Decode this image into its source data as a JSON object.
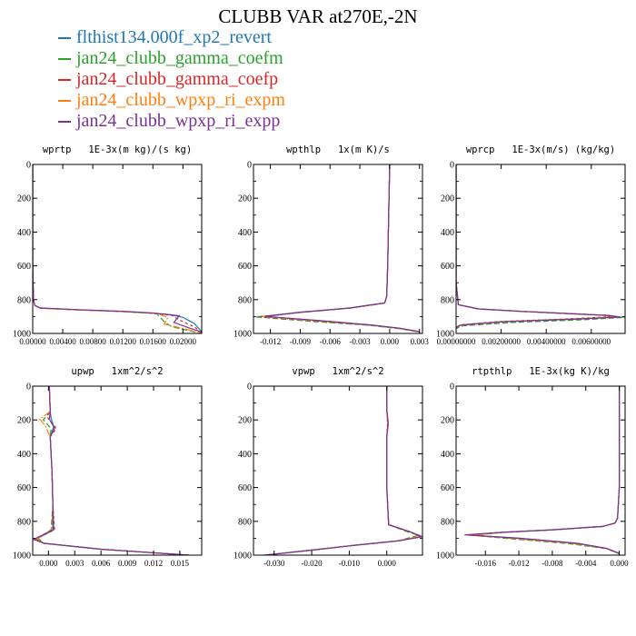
{
  "title": "CLUBB VAR at270E,-2N",
  "legend": [
    {
      "label": "flthist134.000f_xp2_revert",
      "color": "#1f77b4"
    },
    {
      "label": "jan24_clubb_gamma_coefm",
      "color": "#2ca02c"
    },
    {
      "label": "jan24_clubb_gamma_coefp",
      "color": "#d62728"
    },
    {
      "label": "jan24_clubb_wpxp_ri_expm",
      "color": "#ff7f0e"
    },
    {
      "label": "jan24_clubb_wpxp_ri_expp",
      "color": "#7b3294"
    }
  ],
  "chart_data": [
    {
      "type": "line",
      "title": "wprtp   1E-3x(m kg)/(s kg)",
      "xlim": [
        0.0,
        0.0225
      ],
      "ylim": [
        1000,
        0
      ],
      "xticks": [
        0.0,
        0.004,
        0.008,
        0.012,
        0.016,
        0.02
      ],
      "xtick_labels": [
        "0.00000",
        "0.00400",
        "0.00800",
        "0.01200",
        "0.01600",
        "0.02000"
      ],
      "yticks": [
        0,
        200,
        400,
        600,
        800,
        1000
      ],
      "series": [
        {
          "x": [
            0,
            0,
            0.0001,
            0.0003,
            0.001,
            0.006,
            0.012,
            0.016,
            0.0185,
            0.02,
            0.0215,
            0.0225
          ],
          "y": [
            0,
            600,
            800,
            835,
            850,
            860,
            870,
            880,
            890,
            905,
            940,
            990
          ]
        },
        {
          "x": [
            0,
            0,
            0.0001,
            0.0003,
            0.001,
            0.006,
            0.012,
            0.0165,
            0.0175,
            0.0185,
            0.0205,
            0.0225
          ],
          "y": [
            0,
            600,
            800,
            836,
            851,
            861,
            871,
            882,
            930,
            960,
            980,
            1000
          ]
        },
        {
          "x": [
            0,
            0,
            0.0001,
            0.0003,
            0.001,
            0.006,
            0.012,
            0.016,
            0.0185,
            0.0195,
            0.0215,
            0.0225
          ],
          "y": [
            0,
            600,
            800,
            835,
            850,
            860,
            870,
            881,
            892,
            920,
            960,
            995
          ]
        },
        {
          "x": [
            0,
            0,
            0.0001,
            0.0003,
            0.001,
            0.006,
            0.012,
            0.0165,
            0.018,
            0.0175,
            0.0205,
            0.0225
          ],
          "y": [
            0,
            600,
            800,
            836,
            851,
            861,
            871,
            881,
            905,
            945,
            975,
            1000
          ]
        },
        {
          "x": [
            0,
            0,
            0.0001,
            0.0003,
            0.001,
            0.006,
            0.012,
            0.016,
            0.0195,
            0.0188,
            0.021,
            0.0225
          ],
          "y": [
            0,
            600,
            800,
            835,
            849,
            859,
            869,
            879,
            895,
            935,
            970,
            992
          ]
        }
      ]
    },
    {
      "type": "line",
      "title": "wpthlp   1x(m K)/s",
      "xlim": [
        -0.0137,
        0.0033
      ],
      "ylim": [
        1000,
        0
      ],
      "xticks": [
        -0.012,
        -0.009,
        -0.006,
        -0.003,
        0.0,
        0.003
      ],
      "xtick_labels": [
        "-0.012",
        "-0.009",
        "-0.006",
        "-0.003",
        "0.000",
        "0.003"
      ],
      "yticks": [
        0,
        200,
        400,
        600,
        800,
        1000
      ],
      "series": [
        {
          "x": [
            0,
            -0.0001,
            -0.0002,
            -0.0003,
            -0.0005,
            -0.004,
            -0.009,
            -0.0125,
            -0.007,
            -0.002,
            0.001,
            0.003
          ],
          "y": [
            0,
            300,
            600,
            780,
            820,
            850,
            875,
            900,
            925,
            950,
            970,
            990
          ]
        },
        {
          "x": [
            0,
            -0.0001,
            -0.0002,
            -0.0003,
            -0.0005,
            -0.004,
            -0.009,
            -0.0135,
            -0.008,
            -0.002,
            0.001,
            0.003
          ],
          "y": [
            0,
            300,
            600,
            780,
            821,
            851,
            876,
            902,
            928,
            952,
            972,
            992
          ]
        },
        {
          "x": [
            0,
            -0.0001,
            -0.0002,
            -0.0003,
            -0.0005,
            -0.004,
            -0.009,
            -0.013,
            -0.0075,
            -0.002,
            0.001,
            0.003
          ],
          "y": [
            0,
            300,
            600,
            780,
            820,
            850,
            875,
            901,
            926,
            951,
            971,
            991
          ]
        },
        {
          "x": [
            0,
            -0.0001,
            -0.0002,
            -0.0003,
            -0.0005,
            -0.004,
            -0.009,
            -0.0128,
            -0.0072,
            -0.002,
            0.001,
            0.003
          ],
          "y": [
            0,
            300,
            600,
            780,
            820,
            849,
            874,
            900,
            925,
            950,
            970,
            990
          ]
        },
        {
          "x": [
            0,
            -0.0001,
            -0.0002,
            -0.0003,
            -0.0005,
            -0.004,
            -0.009,
            -0.0126,
            -0.007,
            -0.002,
            0.001,
            0.003
          ],
          "y": [
            0,
            300,
            600,
            780,
            819,
            849,
            874,
            899,
            924,
            949,
            969,
            989
          ]
        }
      ]
    },
    {
      "type": "line",
      "title": "wprcp   1E-3x(m/s) (kg/kg)",
      "xlim": [
        0.0,
        0.0075
      ],
      "ylim": [
        1000,
        0
      ],
      "xticks": [
        0.0,
        0.002,
        0.004,
        0.006
      ],
      "xtick_labels": [
        "0.00000000",
        "0.00200000",
        "0.00400000",
        "0.00600000"
      ],
      "yticks": [
        0,
        200,
        400,
        600,
        800,
        1000
      ],
      "series": [
        {
          "x": [
            0,
            0,
            0.0001,
            0.001,
            0.003,
            0.005,
            0.0068,
            0.0072,
            0.005,
            0.002,
            0.0002,
            0
          ],
          "y": [
            0,
            700,
            830,
            855,
            870,
            882,
            893,
            902,
            915,
            930,
            950,
            965
          ]
        },
        {
          "x": [
            0,
            0,
            0.0001,
            0.001,
            0.003,
            0.005,
            0.0068,
            0.0075,
            0.0055,
            0.0025,
            0.0003,
            0
          ],
          "y": [
            0,
            700,
            830,
            856,
            871,
            883,
            895,
            905,
            920,
            935,
            955,
            970
          ]
        },
        {
          "x": [
            0,
            0,
            0.0001,
            0.001,
            0.003,
            0.005,
            0.0066,
            0.0069,
            0.005,
            0.002,
            0.0002,
            0
          ],
          "y": [
            0,
            700,
            830,
            855,
            870,
            882,
            893,
            901,
            914,
            929,
            949,
            964
          ]
        },
        {
          "x": [
            0,
            0,
            0.0001,
            0.001,
            0.003,
            0.005,
            0.0067,
            0.007,
            0.005,
            0.002,
            0.0002,
            0
          ],
          "y": [
            0,
            700,
            830,
            855,
            870,
            882,
            893,
            903,
            916,
            931,
            951,
            966
          ]
        },
        {
          "x": [
            0,
            0,
            0.0001,
            0.001,
            0.003,
            0.005,
            0.0068,
            0.0073,
            0.0052,
            0.0021,
            0.0002,
            0
          ],
          "y": [
            0,
            700,
            830,
            855,
            870,
            882,
            894,
            903,
            916,
            931,
            951,
            966
          ]
        }
      ]
    },
    {
      "type": "line",
      "title": "upwp   1xm^2/s^2",
      "xlim": [
        -0.0018,
        0.0175
      ],
      "ylim": [
        1000,
        0
      ],
      "xticks": [
        0.0,
        0.003,
        0.006,
        0.009,
        0.012,
        0.015
      ],
      "xtick_labels": [
        "0.000",
        "0.003",
        "0.006",
        "0.009",
        "0.012",
        "0.015"
      ],
      "yticks": [
        0,
        200,
        400,
        600,
        800,
        1000
      ],
      "series": [
        {
          "x": [
            0.0001,
            0.0002,
            0.0003,
            0.0006,
            0.0002,
            0.0004,
            0.0005,
            0.0006,
            -0.0014,
            -0.0005,
            0.006,
            0.016
          ],
          "y": [
            0,
            150,
            190,
            240,
            300,
            500,
            700,
            850,
            905,
            930,
            965,
            1000
          ]
        },
        {
          "x": [
            0.0001,
            0.0002,
            -0.0006,
            0.0003,
            0.0002,
            0.0004,
            0.0005,
            0.0003,
            -0.0012,
            -0.0005,
            0.006,
            0.016
          ],
          "y": [
            0,
            150,
            200,
            250,
            300,
            500,
            700,
            850,
            900,
            930,
            965,
            1000
          ]
        },
        {
          "x": [
            0.0001,
            0.0002,
            -0.0002,
            0.0009,
            0.0002,
            0.0004,
            0.0005,
            0.0007,
            -0.0015,
            -0.0005,
            0.006,
            0.016
          ],
          "y": [
            0,
            150,
            180,
            250,
            300,
            500,
            700,
            850,
            905,
            930,
            965,
            1000
          ]
        },
        {
          "x": [
            0.0001,
            0.0002,
            -0.001,
            -0.0004,
            0.0002,
            0.0004,
            0.0005,
            0.0004,
            -0.0013,
            -0.0005,
            0.006,
            0.016
          ],
          "y": [
            0,
            150,
            195,
            230,
            300,
            500,
            700,
            850,
            902,
            930,
            965,
            1000
          ]
        },
        {
          "x": [
            0.0001,
            0.0002,
            0.0001,
            0.0007,
            0.0002,
            0.0004,
            0.0005,
            0.0005,
            -0.0017,
            -0.0005,
            0.006,
            0.016
          ],
          "y": [
            0,
            150,
            195,
            250,
            300,
            500,
            700,
            850,
            907,
            930,
            965,
            1000
          ]
        }
      ]
    },
    {
      "type": "line",
      "title": "vpwp   1xm^2/s^2",
      "xlim": [
        -0.0355,
        0.0095
      ],
      "ylim": [
        1000,
        0
      ],
      "xticks": [
        -0.03,
        -0.02,
        -0.01,
        0.0
      ],
      "xtick_labels": [
        "-0.030",
        "-0.020",
        "-0.010",
        "0.000"
      ],
      "yticks": [
        0,
        200,
        400,
        600,
        800,
        1000
      ],
      "series": [
        {
          "x": [
            0,
            0,
            0.0003,
            0,
            0,
            0.0005,
            0.006,
            0.0093,
            0.003,
            -0.008,
            -0.02,
            -0.0325
          ],
          "y": [
            0,
            140,
            220,
            300,
            600,
            820,
            860,
            890,
            915,
            940,
            970,
            1000
          ]
        },
        {
          "x": [
            0,
            0,
            0.0004,
            0,
            0,
            0.0005,
            0.005,
            0.0085,
            0.003,
            -0.008,
            -0.02,
            -0.0325
          ],
          "y": [
            0,
            140,
            220,
            300,
            600,
            820,
            858,
            882,
            915,
            940,
            970,
            1000
          ]
        },
        {
          "x": [
            0,
            0,
            0.0002,
            0,
            0,
            0.0005,
            0.006,
            0.0095,
            0.003,
            -0.008,
            -0.02,
            -0.0325
          ],
          "y": [
            0,
            140,
            220,
            300,
            600,
            820,
            860,
            890,
            915,
            940,
            970,
            1000
          ]
        },
        {
          "x": [
            0,
            0,
            0.0005,
            0,
            0,
            0.0005,
            0.006,
            0.009,
            0.003,
            -0.008,
            -0.02,
            -0.0325
          ],
          "y": [
            0,
            140,
            220,
            300,
            600,
            820,
            860,
            888,
            915,
            940,
            970,
            1000
          ]
        },
        {
          "x": [
            0,
            0,
            0.0003,
            0,
            0,
            0.0005,
            0.006,
            0.0093,
            0.003,
            -0.008,
            -0.02,
            -0.0325
          ],
          "y": [
            0,
            140,
            220,
            300,
            600,
            820,
            861,
            892,
            916,
            941,
            971,
            1000
          ]
        }
      ]
    },
    {
      "type": "line",
      "title": "rtpthlp   1E-3x(kg K)/kg",
      "xlim": [
        -0.0195,
        0.0007
      ],
      "ylim": [
        1000,
        0
      ],
      "xticks": [
        -0.016,
        -0.012,
        -0.008,
        -0.004,
        0.0
      ],
      "xtick_labels": [
        "-0.016",
        "-0.012",
        "-0.008",
        "-0.004",
        "0.000"
      ],
      "yticks": [
        0,
        200,
        400,
        600,
        800,
        1000
      ],
      "series": [
        {
          "x": [
            0,
            0,
            -0.0002,
            -0.0005,
            -0.002,
            -0.008,
            -0.014,
            -0.018,
            -0.012,
            -0.005,
            -0.0015,
            0
          ],
          "y": [
            0,
            600,
            780,
            810,
            830,
            850,
            865,
            880,
            900,
            930,
            960,
            990
          ]
        },
        {
          "x": [
            0,
            0,
            -0.0002,
            -0.0005,
            -0.002,
            -0.008,
            -0.014,
            -0.0175,
            -0.013,
            -0.006,
            -0.0015,
            0
          ],
          "y": [
            0,
            600,
            780,
            811,
            831,
            851,
            866,
            883,
            903,
            932,
            962,
            992
          ]
        },
        {
          "x": [
            0,
            0,
            -0.0002,
            -0.0005,
            -0.002,
            -0.008,
            -0.014,
            -0.0178,
            -0.012,
            -0.005,
            -0.0015,
            0
          ],
          "y": [
            0,
            600,
            780,
            810,
            830,
            850,
            865,
            881,
            901,
            931,
            961,
            991
          ]
        },
        {
          "x": [
            0,
            0,
            -0.0002,
            -0.0005,
            -0.002,
            -0.008,
            -0.014,
            -0.0176,
            -0.0125,
            -0.0055,
            -0.0015,
            0
          ],
          "y": [
            0,
            600,
            780,
            810,
            830,
            850,
            866,
            882,
            902,
            931,
            961,
            991
          ]
        },
        {
          "x": [
            0,
            0,
            -0.0002,
            -0.0005,
            -0.002,
            -0.008,
            -0.014,
            -0.0185,
            -0.012,
            -0.005,
            -0.0015,
            0
          ],
          "y": [
            0,
            600,
            780,
            810,
            830,
            850,
            865,
            880,
            900,
            930,
            960,
            990
          ]
        }
      ]
    }
  ]
}
